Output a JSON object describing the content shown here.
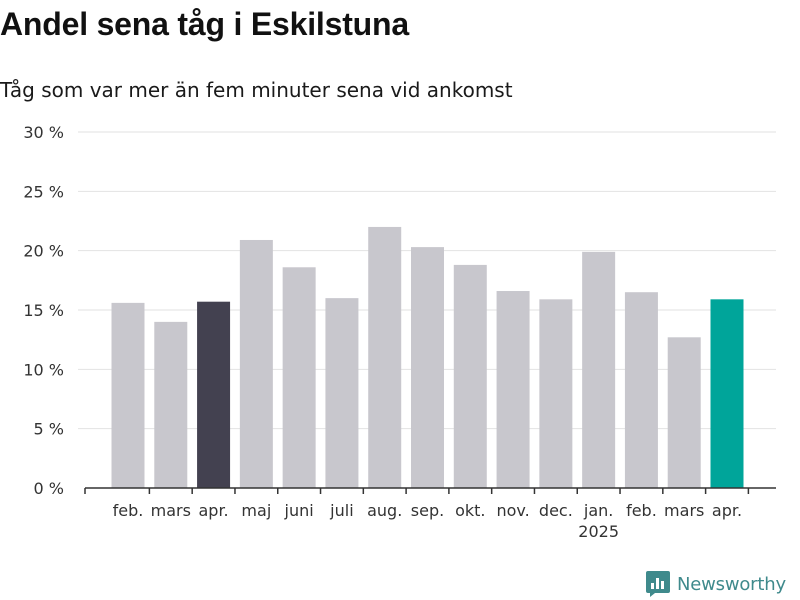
{
  "title": "Andel sena tåg i Eskilstuna",
  "subtitle": "Tåg som var mer än fem minuter sena vid ankomst",
  "brand": {
    "name": "Newsworthy",
    "icon": "newsworthy-logo-icon"
  },
  "colors": {
    "bar": "#c8c7cd",
    "highlight_dark": "#434150",
    "highlight_teal": "#00a59a",
    "grid": "#e2e2e2",
    "axis": "#333333",
    "brand": "#3f8a8c"
  },
  "chart_data": {
    "type": "bar",
    "title": "Andel sena tåg i Eskilstuna",
    "subtitle": "Tåg som var mer än fem minuter sena vid ankomst",
    "categories": [
      "feb.",
      "mars",
      "apr.",
      "maj",
      "juni",
      "juli",
      "aug.",
      "sep.",
      "okt.",
      "nov.",
      "dec.",
      "jan.",
      "feb.",
      "mars",
      "apr."
    ],
    "values": [
      15.6,
      14.0,
      15.7,
      20.9,
      18.6,
      16.0,
      22.0,
      20.3,
      18.8,
      16.6,
      15.9,
      19.9,
      16.5,
      12.7,
      15.9
    ],
    "year_labels": [
      {
        "category_index": 11,
        "label": "2025"
      }
    ],
    "highlight": [
      {
        "index": 2,
        "color": "#434150"
      },
      {
        "index": 14,
        "color": "#00a59a"
      }
    ],
    "y_ticks": [
      0,
      5,
      10,
      15,
      20,
      25,
      30
    ],
    "y_tick_labels": [
      "0 %",
      "5 %",
      "10 %",
      "15 %",
      "20 %",
      "25 %",
      "30 %"
    ],
    "ylim": [
      0,
      30
    ],
    "grid": true,
    "xlabel": "",
    "ylabel": ""
  }
}
